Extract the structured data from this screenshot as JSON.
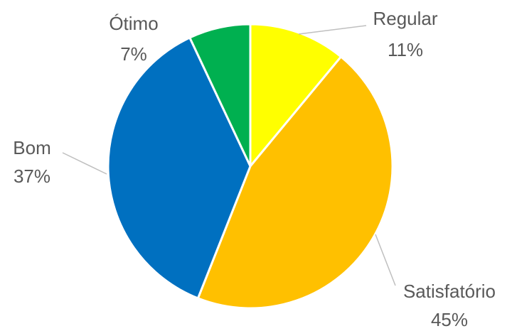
{
  "chart_data": {
    "type": "pie",
    "categories": [
      "Regular",
      "Satisfatório",
      "Bom",
      "Ótimo"
    ],
    "values": [
      11,
      45,
      37,
      7
    ],
    "value_labels": [
      "11%",
      "45%",
      "37%",
      "7%"
    ],
    "colors": [
      "#FFFF00",
      "#FFC000",
      "#0070C0",
      "#00B050"
    ]
  }
}
